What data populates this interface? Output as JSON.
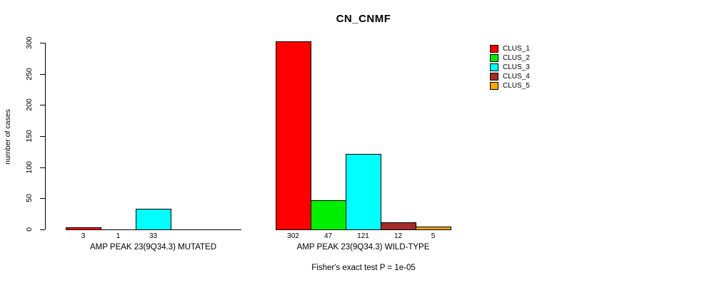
{
  "chart_data": {
    "type": "bar",
    "title": "CN_CNMF",
    "ylabel": "number of cases",
    "ylim": [
      0,
      300
    ],
    "yticks": [
      0,
      50,
      100,
      150,
      200,
      250,
      300
    ],
    "grid": false,
    "legend_position": "right",
    "legend": [
      {
        "name": "CLUS_1",
        "color": "#FF0000"
      },
      {
        "name": "CLUS_2",
        "color": "#00EE00"
      },
      {
        "name": "CLUS_3",
        "color": "#00FFFF"
      },
      {
        "name": "CLUS_4",
        "color": "#A52A2A"
      },
      {
        "name": "CLUS_5",
        "color": "#FFA500"
      }
    ],
    "groups": [
      {
        "label": "AMP PEAK 23(9Q34.3) MUTATED",
        "series": [
          "CLUS_1",
          "CLUS_2",
          "CLUS_3",
          "CLUS_4",
          "CLUS_5"
        ],
        "values": [
          3,
          1,
          33,
          0,
          0
        ],
        "value_labels": [
          "3",
          "1",
          "33",
          "",
          ""
        ]
      },
      {
        "label": "AMP PEAK 23(9Q34.3) WILD-TYPE",
        "series": [
          "CLUS_1",
          "CLUS_2",
          "CLUS_3",
          "CLUS_4",
          "CLUS_5"
        ],
        "values": [
          302,
          47,
          121,
          12,
          5
        ],
        "value_labels": [
          "302",
          "47",
          "121",
          "12",
          "5"
        ]
      }
    ],
    "annotation": "Fisher's exact test P = 1e-05"
  }
}
